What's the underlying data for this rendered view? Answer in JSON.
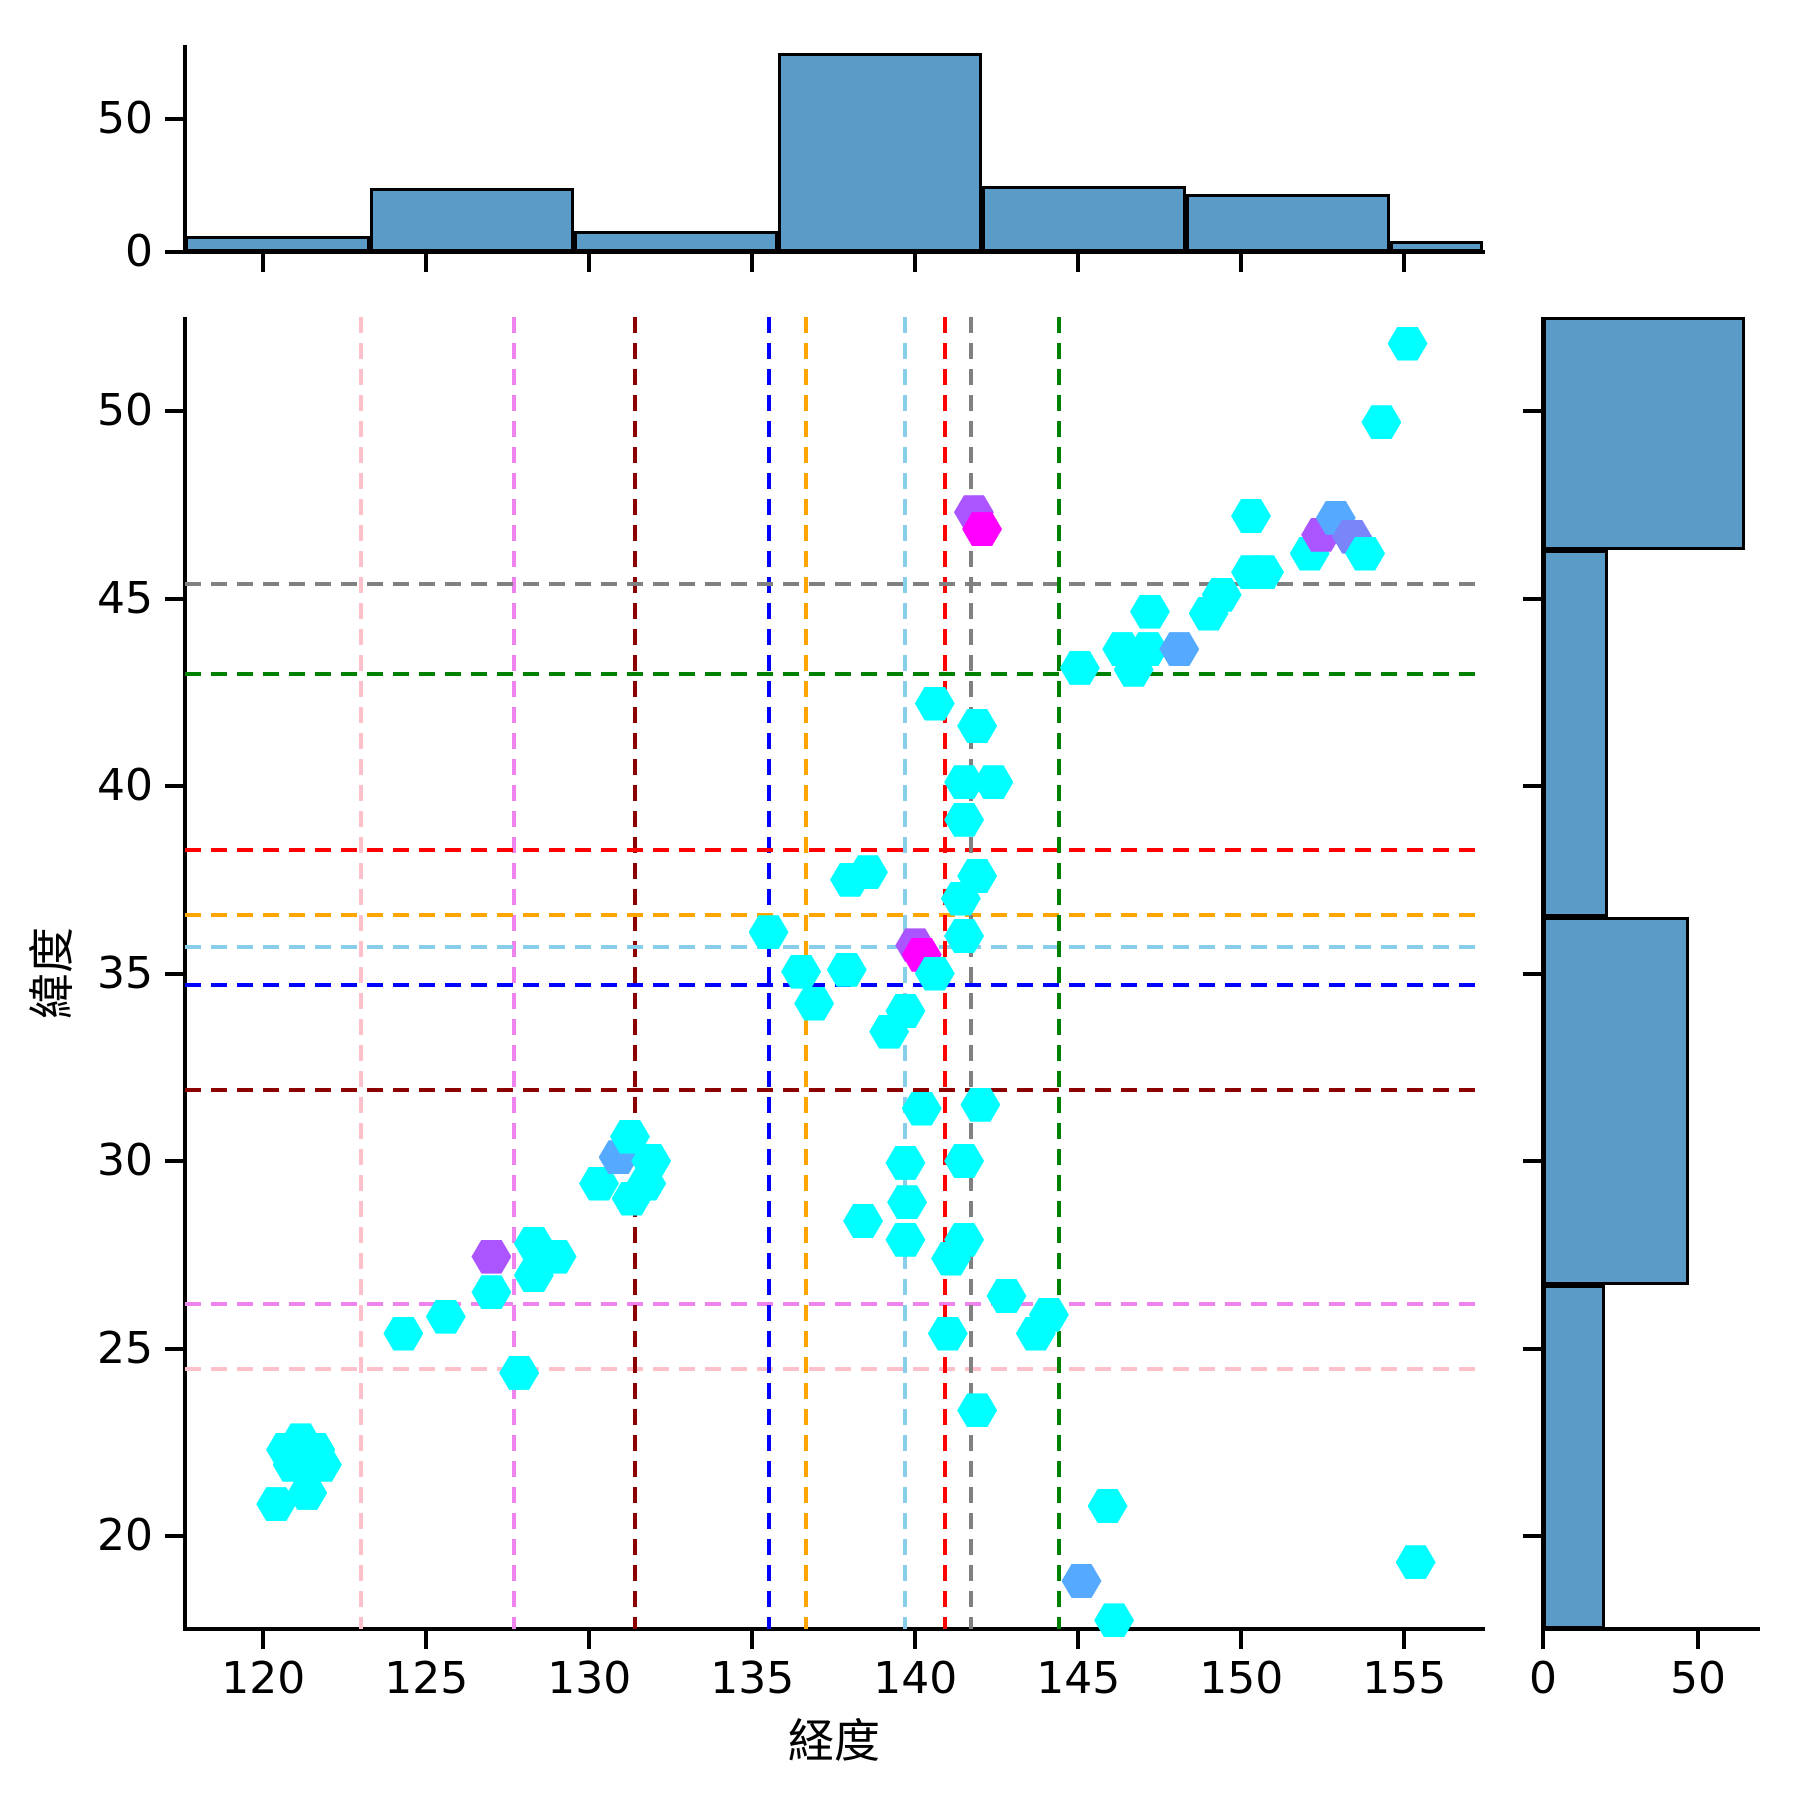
{
  "figure": {
    "background": "#FFFFFF"
  },
  "axes": {
    "xlabel": "経度",
    "ylabel": "緯度",
    "x_ticks": [
      120,
      125,
      130,
      135,
      140,
      145,
      150,
      155
    ],
    "y_ticks": [
      20,
      25,
      30,
      35,
      40,
      45,
      50
    ],
    "xlim": [
      117.6,
      157.4
    ],
    "ylim": [
      17.5,
      52.5
    ]
  },
  "chart_data": [
    {
      "type": "scatter",
      "marker": "hexagon",
      "xlabel": "経度",
      "ylabel": "緯度",
      "xlim": [
        117.6,
        157.4
      ],
      "ylim": [
        17.5,
        52.5
      ],
      "grid": false,
      "legend": "none",
      "colormap": {
        "1": "#00FFFF",
        "2": "#55AAFF",
        "2.5": "#7A85FA",
        "3": "#AA55FF",
        "4": "#FF00FF"
      },
      "points": [
        [
          120.4,
          20.85,
          1
        ],
        [
          120.7,
          22.3,
          1
        ],
        [
          121.15,
          22.55,
          1
        ],
        [
          121.6,
          22.3,
          1
        ],
        [
          120.9,
          21.9,
          1
        ],
        [
          121.35,
          21.9,
          1
        ],
        [
          121.8,
          21.9,
          1
        ],
        [
          121.35,
          21.15,
          1
        ],
        [
          124.3,
          25.4,
          1
        ],
        [
          125.6,
          25.85,
          1
        ],
        [
          127.0,
          26.5,
          1
        ],
        [
          127.85,
          24.35,
          1
        ],
        [
          127.0,
          27.45,
          3
        ],
        [
          128.3,
          27.8,
          1
        ],
        [
          129.0,
          27.45,
          1
        ],
        [
          128.3,
          26.95,
          1
        ],
        [
          130.3,
          29.4,
          1
        ],
        [
          130.9,
          30.1,
          2
        ],
        [
          131.3,
          29.0,
          1
        ],
        [
          131.75,
          29.4,
          1
        ],
        [
          131.9,
          30.0,
          1
        ],
        [
          131.25,
          30.65,
          1
        ],
        [
          135.5,
          36.1,
          1
        ],
        [
          136.9,
          34.2,
          1
        ],
        [
          136.5,
          35.05,
          1
        ],
        [
          137.9,
          35.1,
          1
        ],
        [
          138.0,
          37.5,
          1
        ],
        [
          138.55,
          37.7,
          1
        ],
        [
          139.2,
          33.45,
          1
        ],
        [
          139.7,
          34.0,
          1
        ],
        [
          140.0,
          35.75,
          3
        ],
        [
          140.2,
          35.5,
          4
        ],
        [
          140.6,
          35.0,
          1
        ],
        [
          141.5,
          36.0,
          1
        ],
        [
          141.4,
          37.0,
          1
        ],
        [
          141.9,
          37.6,
          1
        ],
        [
          141.5,
          39.1,
          1
        ],
        [
          141.5,
          40.1,
          1
        ],
        [
          142.4,
          40.1,
          1
        ],
        [
          141.9,
          41.6,
          1
        ],
        [
          140.6,
          42.2,
          1
        ],
        [
          140.2,
          31.4,
          1
        ],
        [
          142.0,
          31.5,
          1
        ],
        [
          139.7,
          29.95,
          1
        ],
        [
          141.5,
          30.0,
          1
        ],
        [
          139.75,
          28.9,
          1
        ],
        [
          138.4,
          28.4,
          1
        ],
        [
          139.7,
          27.9,
          1
        ],
        [
          141.5,
          27.9,
          1
        ],
        [
          141.1,
          27.4,
          1
        ],
        [
          142.8,
          26.4,
          1
        ],
        [
          144.1,
          25.9,
          1
        ],
        [
          143.7,
          25.4,
          1
        ],
        [
          141.0,
          25.4,
          1
        ],
        [
          141.9,
          23.35,
          1
        ],
        [
          145.9,
          20.8,
          1
        ],
        [
          145.1,
          18.8,
          2
        ],
        [
          146.1,
          17.75,
          1
        ],
        [
          155.35,
          19.3,
          1
        ],
        [
          145.05,
          43.15,
          1
        ],
        [
          146.35,
          43.65,
          1
        ],
        [
          147.15,
          43.65,
          1
        ],
        [
          148.1,
          43.65,
          2
        ],
        [
          146.7,
          43.1,
          1
        ],
        [
          147.2,
          44.65,
          1
        ],
        [
          149.0,
          44.6,
          1
        ],
        [
          149.4,
          45.1,
          1
        ],
        [
          150.3,
          45.7,
          1
        ],
        [
          150.7,
          45.7,
          1
        ],
        [
          150.3,
          47.2,
          1
        ],
        [
          141.8,
          47.3,
          3
        ],
        [
          142.05,
          46.85,
          4
        ],
        [
          152.1,
          46.2,
          1
        ],
        [
          152.45,
          46.7,
          3
        ],
        [
          152.9,
          47.15,
          2
        ],
        [
          153.4,
          46.65,
          2.5
        ],
        [
          153.8,
          46.2,
          1
        ],
        [
          154.3,
          49.7,
          1
        ],
        [
          155.1,
          51.8,
          1
        ]
      ],
      "reference_lines": [
        {
          "name": "pink",
          "color": "#FFC0CB",
          "x": 123.0,
          "y": 24.45,
          "style": "dashed"
        },
        {
          "name": "violet",
          "color": "#EE82EE",
          "x": 127.7,
          "y": 26.2,
          "style": "dashed"
        },
        {
          "name": "darkred",
          "color": "#8B0000",
          "x": 131.4,
          "y": 31.9,
          "style": "dashed"
        },
        {
          "name": "blue",
          "color": "#0000FF",
          "x": 135.5,
          "y": 34.7,
          "style": "dashed"
        },
        {
          "name": "orange",
          "color": "#FFA500",
          "x": 136.65,
          "y": 36.55,
          "style": "dashed"
        },
        {
          "name": "skyblue",
          "color": "#87CEEB",
          "x": 139.7,
          "y": 35.7,
          "style": "dashed"
        },
        {
          "name": "red",
          "color": "#FF0000",
          "x": 140.9,
          "y": 38.3,
          "style": "dashed"
        },
        {
          "name": "gray",
          "color": "#808080",
          "x": 141.7,
          "y": 45.4,
          "style": "dashed"
        },
        {
          "name": "green",
          "color": "#008000",
          "x": 144.4,
          "y": 43.0,
          "style": "dashed"
        }
      ]
    },
    {
      "type": "bar",
      "role": "top-marginal-histogram",
      "orientation": "vertical",
      "bin_edges": [
        117.0,
        123.26,
        129.52,
        135.78,
        142.04,
        148.3,
        154.56,
        160.82
      ],
      "values": [
        6,
        24,
        8,
        75,
        25,
        22,
        4
      ],
      "y_ticks": [
        0,
        50
      ],
      "ylim": [
        0,
        78
      ],
      "bar_color": "#5B9BC8",
      "edge_color": "#000000"
    },
    {
      "type": "bar",
      "role": "right-marginal-histogram",
      "orientation": "horizontal",
      "bin_edges": [
        16.9,
        26.7,
        36.5,
        46.3,
        56.1
      ],
      "values": [
        20,
        47,
        21,
        65
      ],
      "x_ticks": [
        0,
        50
      ],
      "xlim": [
        0,
        69
      ],
      "bar_color": "#5B9BC8",
      "edge_color": "#000000"
    }
  ]
}
